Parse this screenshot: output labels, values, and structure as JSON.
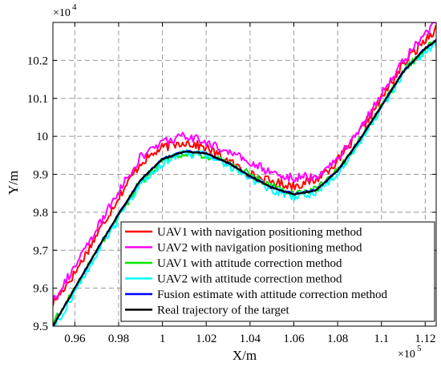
{
  "chart_data": {
    "type": "line",
    "xlabel": "X/m",
    "ylabel": "Y/m",
    "x_exponent_label": "×10",
    "x_exponent_power": "5",
    "y_exponent_label": "×10",
    "y_exponent_power": "4",
    "xlim": [
      0.95,
      1.125
    ],
    "ylim": [
      9.5,
      10.3
    ],
    "x_ticks": [
      0.96,
      0.98,
      1.0,
      1.02,
      1.04,
      1.06,
      1.08,
      1.1,
      1.12
    ],
    "x_tick_labels": [
      "0.96",
      "0.98",
      "1",
      "1.02",
      "1.04",
      "1.06",
      "1.08",
      "1.1",
      "1.12"
    ],
    "y_ticks": [
      9.5,
      9.6,
      9.7,
      9.8,
      9.9,
      10.0,
      10.1,
      10.2
    ],
    "y_tick_labels": [
      "9.5",
      "9.6",
      "9.7",
      "9.8",
      "9.9",
      "10",
      "10.1",
      "10.2"
    ],
    "grid": true,
    "grid_style": "dashed",
    "legend_position": "bottom-right",
    "series": [
      {
        "name": "UAV1 with navigation positioning method",
        "color": "#ff0000",
        "noise": 0.012,
        "x": [
          0.95,
          0.96,
          0.97,
          0.98,
          0.99,
          1.0,
          1.01,
          1.02,
          1.03,
          1.04,
          1.05,
          1.06,
          1.07,
          1.08,
          1.09,
          1.1,
          1.11,
          1.12,
          1.125
        ],
        "y": [
          9.56,
          9.64,
          9.74,
          9.84,
          9.93,
          9.97,
          9.985,
          9.97,
          9.935,
          9.9,
          9.88,
          9.87,
          9.885,
          9.935,
          10.01,
          10.1,
          10.19,
          10.255,
          10.285
        ]
      },
      {
        "name": "UAV2 with navigation positioning method",
        "color": "#ff00ff",
        "noise": 0.012,
        "x": [
          0.95,
          0.96,
          0.97,
          0.98,
          0.99,
          1.0,
          1.01,
          1.02,
          1.03,
          1.04,
          1.05,
          1.06,
          1.07,
          1.08,
          1.09,
          1.1,
          1.11,
          1.12,
          1.125
        ],
        "y": [
          9.57,
          9.655,
          9.755,
          9.855,
          9.945,
          9.985,
          10.0,
          9.985,
          9.96,
          9.93,
          9.905,
          9.89,
          9.895,
          9.94,
          10.02,
          10.11,
          10.2,
          10.27,
          10.3
        ]
      },
      {
        "name": "UAV1 with attitude correction method",
        "color": "#00e600",
        "noise": 0.01,
        "x": [
          0.95,
          0.96,
          0.97,
          0.98,
          0.99,
          1.0,
          1.01,
          1.02,
          1.03,
          1.04,
          1.05,
          1.06,
          1.07,
          1.08,
          1.09,
          1.1,
          1.11,
          1.12,
          1.125
        ],
        "y": [
          9.505,
          9.6,
          9.7,
          9.79,
          9.88,
          9.935,
          9.955,
          9.95,
          9.93,
          9.9,
          9.87,
          9.85,
          9.86,
          9.91,
          9.99,
          10.08,
          10.17,
          10.23,
          10.25
        ]
      },
      {
        "name": "UAV2 with attitude correction method",
        "color": "#00ffff",
        "noise": 0.011,
        "x": [
          0.95,
          0.96,
          0.97,
          0.98,
          0.99,
          1.0,
          1.01,
          1.02,
          1.03,
          1.04,
          1.05,
          1.06,
          1.07,
          1.08,
          1.09,
          1.1,
          1.11,
          1.12,
          1.125
        ],
        "y": [
          9.49,
          9.59,
          9.69,
          9.785,
          9.875,
          9.93,
          9.955,
          9.95,
          9.925,
          9.89,
          9.86,
          9.84,
          9.85,
          9.905,
          9.985,
          10.075,
          10.165,
          10.225,
          10.245
        ]
      },
      {
        "name": "Fusion estimate with attitude correction method",
        "color": "#0000ff",
        "noise": 0.003,
        "x": [
          0.95,
          0.96,
          0.97,
          0.98,
          0.99,
          1.0,
          1.01,
          1.02,
          1.03,
          1.04,
          1.05,
          1.06,
          1.07,
          1.08,
          1.09,
          1.1,
          1.11,
          1.12,
          1.125
        ],
        "y": [
          9.5,
          9.6,
          9.7,
          9.795,
          9.885,
          9.94,
          9.96,
          9.955,
          9.93,
          9.895,
          9.865,
          9.848,
          9.858,
          9.91,
          9.99,
          10.08,
          10.17,
          10.232,
          10.252
        ]
      },
      {
        "name": "Real trajectory of the target",
        "color": "#000000",
        "noise": 0,
        "x": [
          0.95,
          0.96,
          0.97,
          0.98,
          0.99,
          1.0,
          1.01,
          1.02,
          1.03,
          1.04,
          1.05,
          1.06,
          1.07,
          1.08,
          1.09,
          1.1,
          1.11,
          1.12,
          1.125
        ],
        "y": [
          9.5,
          9.6,
          9.7,
          9.795,
          9.885,
          9.94,
          9.96,
          9.955,
          9.93,
          9.895,
          9.865,
          9.847,
          9.857,
          9.91,
          9.99,
          10.08,
          10.17,
          10.232,
          10.252
        ]
      }
    ]
  }
}
